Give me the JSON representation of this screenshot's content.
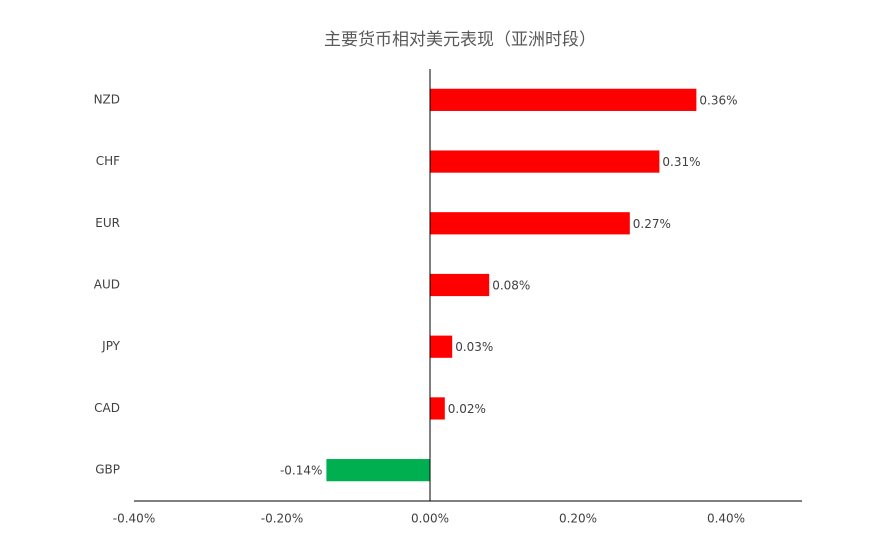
{
  "chart_data": {
    "type": "hbar",
    "title": "主要货币相对美元表现（亚洲时段）",
    "categories": [
      "NZD",
      "CHF",
      "EUR",
      "AUD",
      "JPY",
      "CAD",
      "GBP"
    ],
    "values": [
      0.36,
      0.31,
      0.27,
      0.08,
      0.03,
      0.02,
      -0.14
    ],
    "value_labels": [
      "0.36%",
      "0.31%",
      "0.27%",
      "0.08%",
      "0.03%",
      "0.02%",
      "-0.14%"
    ],
    "colors": [
      "#ff0000",
      "#ff0000",
      "#ff0000",
      "#ff0000",
      "#ff0000",
      "#ff0000",
      "#00b050"
    ],
    "xlim": [
      -0.4,
      0.5
    ],
    "xticks": [
      {
        "value": -0.4,
        "label": "-0.40%"
      },
      {
        "value": -0.2,
        "label": "-0.20%"
      },
      {
        "value": 0,
        "label": "0.00%"
      },
      {
        "value": 0.2,
        "label": "0.20%"
      },
      {
        "value": 0.4,
        "label": "0.40%"
      }
    ],
    "grid": false
  }
}
